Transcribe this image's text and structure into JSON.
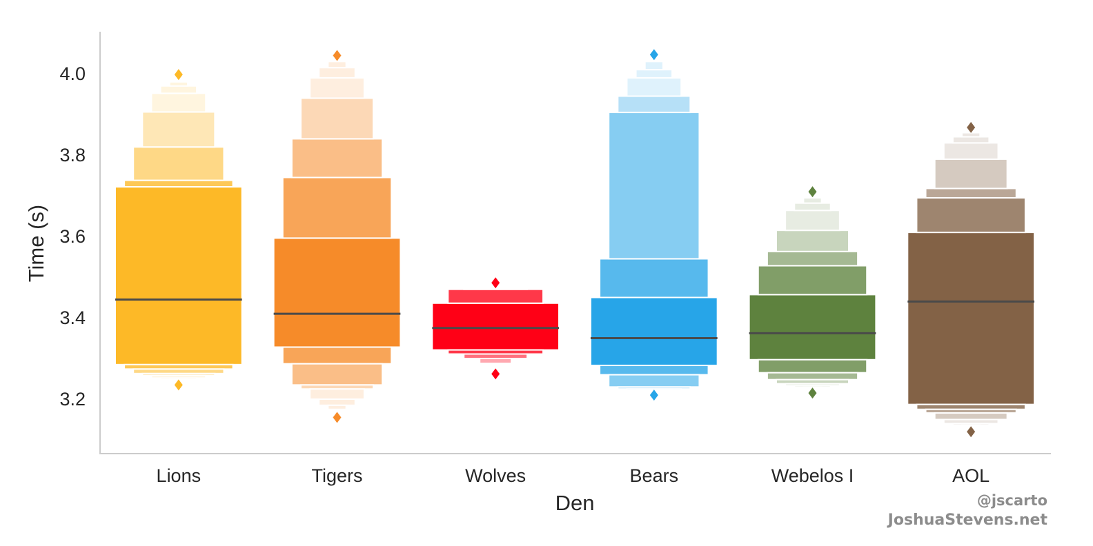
{
  "credits": {
    "handle": "@jscarto",
    "site": "JoshuaStevens.net"
  },
  "chart_data": {
    "type": "boxen",
    "xlabel": "Den",
    "ylabel": "Time (s)",
    "ylim": [
      3.08,
      4.1
    ],
    "yticks": [
      3.2,
      3.4,
      3.6,
      3.8,
      4.0
    ],
    "grid": false,
    "categories": [
      "Lions",
      "Tigers",
      "Wolves",
      "Bears",
      "Webelos I",
      "AOL"
    ],
    "series": [
      {
        "category": "Lions",
        "color": "#FDB927",
        "median": 3.445,
        "boxes": [
          [
            3.285,
            3.722
          ],
          [
            3.274,
            3.738
          ],
          [
            3.263,
            3.82
          ],
          [
            3.258,
            3.906
          ],
          [
            3.252,
            3.952
          ],
          [
            3.248,
            3.97
          ],
          [
            3.245,
            3.98
          ]
        ],
        "outliers": [
          3.235,
          3.998
        ]
      },
      {
        "category": "Tigers",
        "color": "#F68B29",
        "median": 3.41,
        "boxes": [
          [
            3.328,
            3.596
          ],
          [
            3.287,
            3.745
          ],
          [
            3.235,
            3.84
          ],
          [
            3.225,
            3.94
          ],
          [
            3.2,
            3.99
          ],
          [
            3.185,
            4.015
          ],
          [
            3.175,
            4.03
          ]
        ],
        "outliers": [
          3.155,
          4.045
        ]
      },
      {
        "category": "Wolves",
        "color": "#FF0016",
        "median": 3.375,
        "boxes": [
          [
            3.321,
            3.436
          ],
          [
            3.311,
            3.47
          ],
          [
            3.3,
            3.472
          ],
          [
            3.288,
            3.474
          ]
        ],
        "outliers": [
          3.262,
          3.486
        ]
      },
      {
        "category": "Bears",
        "color": "#27A5E8",
        "median": 3.35,
        "boxes": [
          [
            3.283,
            3.45
          ],
          [
            3.26,
            3.545
          ],
          [
            3.23,
            3.905
          ],
          [
            3.225,
            3.945
          ],
          [
            3.221,
            3.99
          ],
          [
            3.219,
            4.01
          ],
          [
            3.217,
            4.03
          ]
        ],
        "outliers": [
          3.21,
          4.047
        ]
      },
      {
        "category": "Webelos I",
        "color": "#5E823E",
        "median": 3.362,
        "boxes": [
          [
            3.297,
            3.457
          ],
          [
            3.265,
            3.528
          ],
          [
            3.248,
            3.563
          ],
          [
            3.238,
            3.615
          ],
          [
            3.233,
            3.664
          ],
          [
            3.229,
            3.682
          ],
          [
            3.226,
            3.695
          ]
        ],
        "outliers": [
          3.215,
          3.71
        ]
      },
      {
        "category": "AOL",
        "color": "#836246",
        "median": 3.44,
        "boxes": [
          [
            3.187,
            3.61
          ],
          [
            3.175,
            3.695
          ],
          [
            3.166,
            3.718
          ],
          [
            3.15,
            3.79
          ],
          [
            3.14,
            3.83
          ],
          [
            3.136,
            3.845
          ],
          [
            3.133,
            3.855
          ]
        ],
        "outliers": [
          3.12,
          3.868
        ]
      }
    ]
  }
}
